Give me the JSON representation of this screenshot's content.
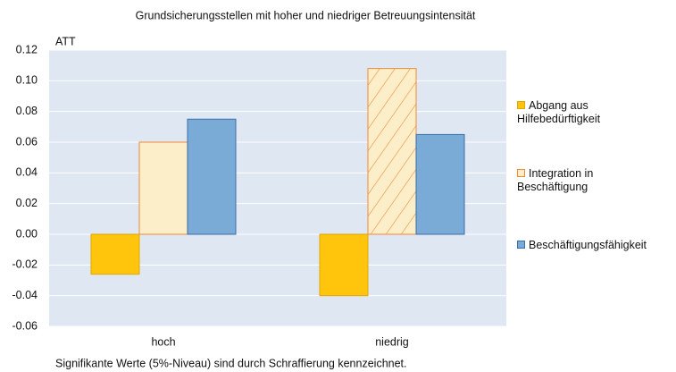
{
  "chart_data": {
    "type": "bar",
    "title": "Grundsicherungsstellen mit hoher und niedriger Betreuungsintensität",
    "y_label": "ATT",
    "note": "Signifikante Werte (5%-Niveau) sind durch Schraffierung kennzeichnet.",
    "categories": [
      "hoch",
      "niedrig"
    ],
    "series": [
      {
        "name": "Abgang aus Hilfebedürftigkeit",
        "color": "#ffc40c",
        "edge": "#e0a800",
        "values": [
          -0.026,
          -0.04
        ],
        "hatched": [
          false,
          false
        ]
      },
      {
        "name": "Integration in Beschäftigung",
        "color": "#fbeec8",
        "edge": "#f08a3a",
        "values": [
          0.06,
          0.108
        ],
        "hatched": [
          false,
          true
        ]
      },
      {
        "name": "Beschäftigungsfähigkeit",
        "color": "#7aaad6",
        "edge": "#3b6fa8",
        "values": [
          0.075,
          0.065
        ],
        "hatched": [
          false,
          false
        ]
      }
    ],
    "ylim": [
      -0.06,
      0.12
    ],
    "yticks": [
      {
        "value": 0.12,
        "label": "0.12"
      },
      {
        "value": 0.1,
        "label": "0.10"
      },
      {
        "value": 0.08,
        "label": "0.08"
      },
      {
        "value": 0.06,
        "label": "0.06"
      },
      {
        "value": 0.04,
        "label": "0.04"
      },
      {
        "value": 0.02,
        "label": "0.02"
      },
      {
        "value": 0,
        "label": "0.00"
      },
      {
        "value": -0.02,
        "label": "-0.02"
      },
      {
        "value": -0.04,
        "label": "-0.04"
      },
      {
        "value": -0.06,
        "label": "-0.06"
      }
    ],
    "grid": true,
    "legend": "right"
  }
}
